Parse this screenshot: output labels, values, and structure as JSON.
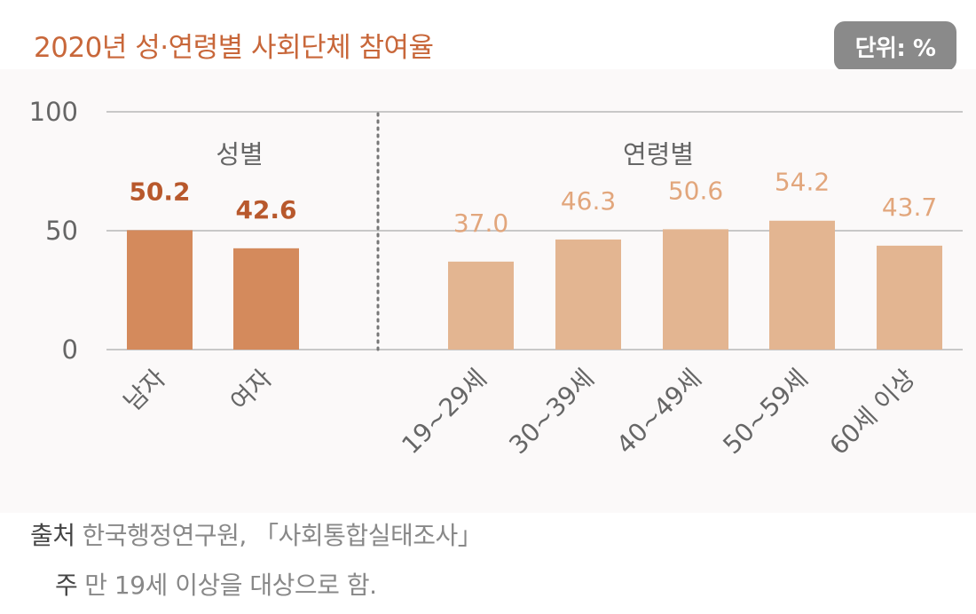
{
  "title": "2020년 성·연령별 사회단체 참여율",
  "unit_badge": "단위: %",
  "source": {
    "label": "출처",
    "text": "한국행정연구원, 「사회통합실태조사」"
  },
  "note": {
    "label": "주",
    "text": "만 19세 이상을 대상으로 함."
  },
  "colors": {
    "title": "#c8673a",
    "gender_bar": "#d48a5c",
    "gender_label": "#b8582c",
    "age_bar": "#e3b591",
    "age_label": "#e2a67c",
    "axis_text": "#666666",
    "grid": "#c8c8c8",
    "panel_bg": "#fbf9f9"
  },
  "chart_data": {
    "type": "bar",
    "ylim": [
      0,
      100
    ],
    "yticks": [
      0,
      50,
      100
    ],
    "grid": true,
    "groups": [
      {
        "name": "성별",
        "categories": [
          "남자",
          "여자"
        ],
        "values": [
          50.2,
          42.6
        ],
        "labels": [
          "50.2",
          "42.6"
        ]
      },
      {
        "name": "연령별",
        "categories": [
          "19~29세",
          "30~39세",
          "40~49세",
          "50~59세",
          "60세 이상"
        ],
        "values": [
          37.0,
          46.3,
          50.6,
          54.2,
          43.7
        ],
        "labels": [
          "37.0",
          "46.3",
          "50.6",
          "54.2",
          "43.7"
        ]
      }
    ]
  }
}
